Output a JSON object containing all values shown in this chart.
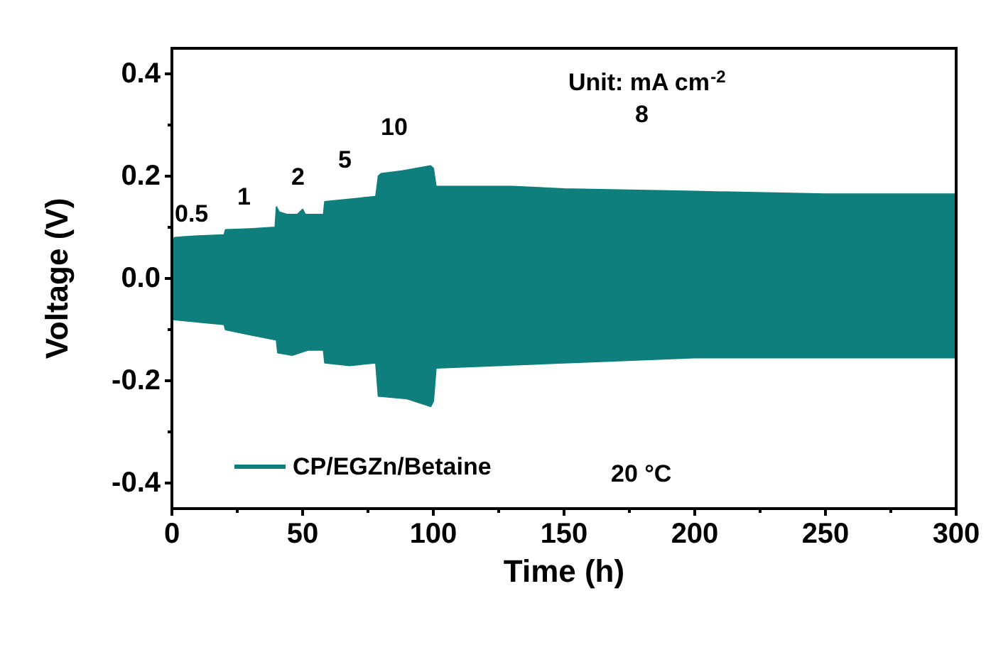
{
  "chart_data": {
    "type": "area",
    "xlabel": "Time (h)",
    "ylabel": "Voltage (V)",
    "xlim": [
      0,
      300
    ],
    "xticks": [
      0,
      50,
      100,
      150,
      200,
      250,
      300
    ],
    "ylim": [
      -0.45,
      0.45
    ],
    "yticks": [
      {
        "value": -0.4,
        "label": "-0.4"
      },
      {
        "value": -0.2,
        "label": "-0.2"
      },
      {
        "value": 0,
        "label": "0.0"
      },
      {
        "value": 0.2,
        "label": "0.2"
      },
      {
        "value": 0.4,
        "label": "0.4"
      }
    ],
    "grid": false,
    "legend": "bottom left",
    "series": [
      {
        "name": "CP/EGZn/Betaine",
        "color": "#0e7f7c",
        "x": [
          0,
          1,
          10,
          20,
          20.5,
          30,
          39.5,
          40,
          41,
          44,
          48,
          50,
          51,
          53,
          58,
          58.5,
          68,
          78,
          79,
          80,
          88,
          99,
          100,
          101,
          130,
          150,
          200,
          250,
          300
        ],
        "values": [
          0.07,
          0.08,
          0.083,
          0.085,
          0.095,
          0.097,
          0.1,
          0.14,
          0.13,
          0.125,
          0.125,
          0.135,
          0.125,
          0.125,
          0.125,
          0.15,
          0.155,
          0.16,
          0.2,
          0.205,
          0.21,
          0.22,
          0.215,
          0.18,
          0.18,
          0.175,
          0.17,
          0.165,
          0.165
        ]
      },
      {
        "color": "#0e7f7c",
        "x": [
          0,
          10,
          20,
          20.5,
          30,
          40,
          40.5,
          46,
          52,
          58,
          58.5,
          68,
          78,
          79,
          90,
          99,
          100,
          101,
          150,
          200,
          300
        ],
        "values": [
          -0.08,
          -0.085,
          -0.09,
          -0.1,
          -0.11,
          -0.12,
          -0.145,
          -0.15,
          -0.14,
          -0.14,
          -0.165,
          -0.17,
          -0.165,
          -0.23,
          -0.235,
          -0.25,
          -0.24,
          -0.175,
          -0.165,
          -0.155,
          -0.155
        ]
      }
    ],
    "annotations": [
      "0.5",
      "1",
      "2",
      "5",
      "10",
      "8",
      "Unit: mA cm$^{-2}$",
      "20 °C"
    ]
  }
}
